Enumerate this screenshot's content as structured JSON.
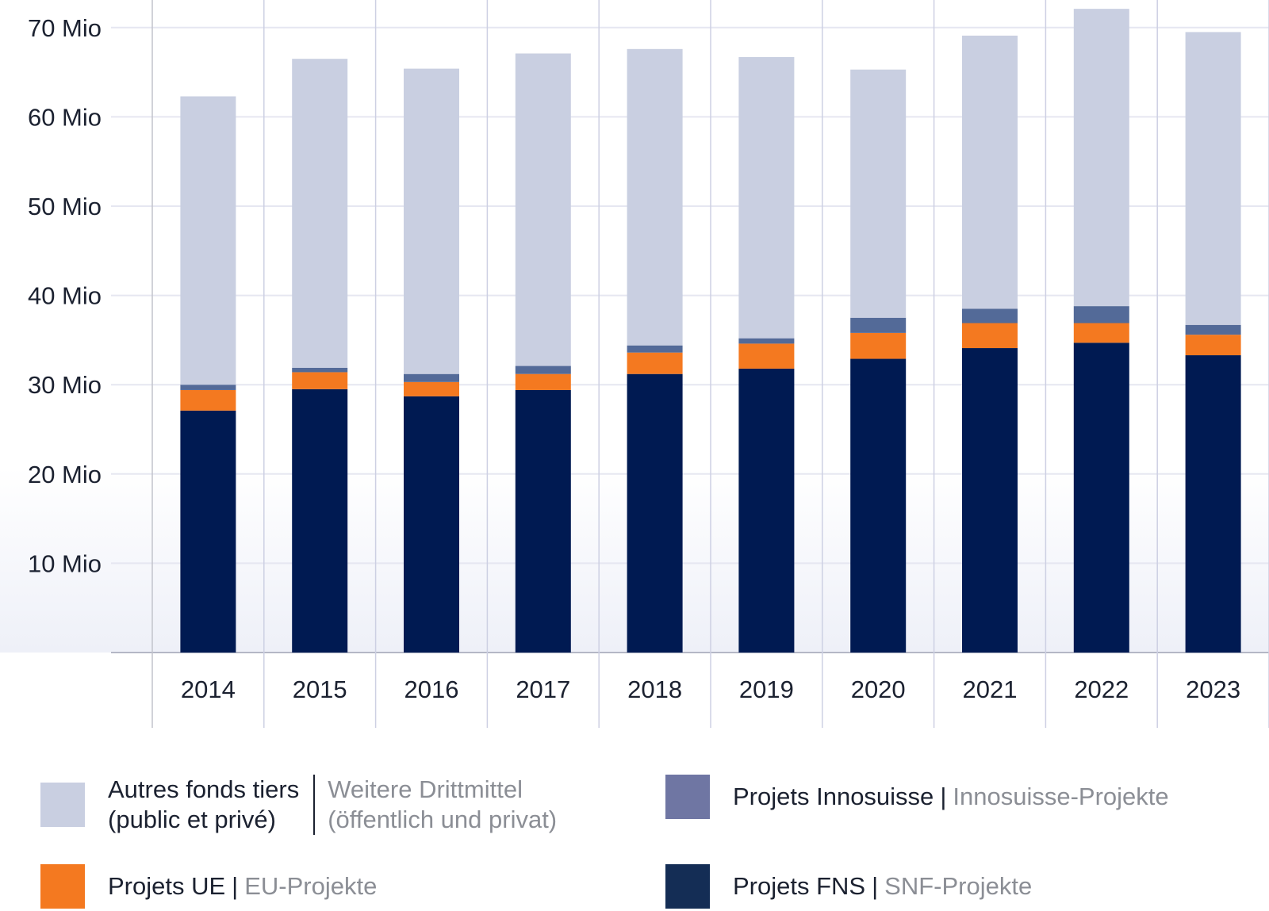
{
  "chart_data": {
    "type": "bar",
    "stacked": true,
    "title": "",
    "xlabel": "",
    "ylabel": "",
    "categories": [
      "2014",
      "2015",
      "2016",
      "2017",
      "2018",
      "2019",
      "2020",
      "2021",
      "2022",
      "2023"
    ],
    "series": [
      {
        "name": "Projets FNS | SNF-Projekte",
        "color": "#001a52",
        "values": [
          27.1,
          29.5,
          28.7,
          29.4,
          31.2,
          31.8,
          32.9,
          34.1,
          34.7,
          33.3
        ]
      },
      {
        "name": "Projets UE | EU-Projekte",
        "color": "#f47920",
        "values": [
          2.3,
          1.9,
          1.6,
          1.8,
          2.4,
          2.8,
          2.9,
          2.8,
          2.2,
          2.3
        ]
      },
      {
        "name": "Projets Innosuisse | Innosuisse-Projekte",
        "color": "#536a98",
        "values": [
          0.6,
          0.5,
          0.9,
          0.9,
          0.8,
          0.6,
          1.7,
          1.6,
          1.9,
          1.1
        ]
      },
      {
        "name": "Autres fonds tiers (public et privé) | Weitere Drittmittel (öffentlich und privat)",
        "color": "#c9cfe1",
        "values": [
          32.3,
          34.6,
          34.2,
          35.0,
          33.2,
          31.5,
          27.8,
          30.6,
          33.3,
          32.8
        ]
      }
    ],
    "totals": [
      62.3,
      66.5,
      65.4,
      67.1,
      67.6,
      66.7,
      65.3,
      69.1,
      72.1,
      69.5
    ],
    "yticks": [
      {
        "value": 10,
        "label": "10 Mio"
      },
      {
        "value": 20,
        "label": "20 Mio"
      },
      {
        "value": 30,
        "label": "30 Mio"
      },
      {
        "value": 40,
        "label": "40 Mio"
      },
      {
        "value": 50,
        "label": "50 Mio"
      },
      {
        "value": 60,
        "label": "60 Mio"
      },
      {
        "value": 70,
        "label": "70 Mio"
      }
    ],
    "ylim": [
      0,
      73
    ],
    "grid": true,
    "legend_position": "bottom"
  },
  "legend": {
    "items": [
      {
        "fr": "Autres fonds tiers",
        "fr2": "(public et privé)",
        "de": "Weitere Drittmittel",
        "de2": "(öffentlich und privat)",
        "color": "#c9cfe1"
      },
      {
        "fr": "Projets Innosuisse",
        "sep": "|",
        "de": "Innosuisse-Projekte",
        "color": "#6f76a3"
      },
      {
        "fr": "Projets UE",
        "sep": "|",
        "de": "EU-Projekte",
        "color": "#f47920"
      },
      {
        "fr": "Projets FNS",
        "sep": "|",
        "de": "SNF-Projekte",
        "color": "#142d55"
      }
    ]
  }
}
